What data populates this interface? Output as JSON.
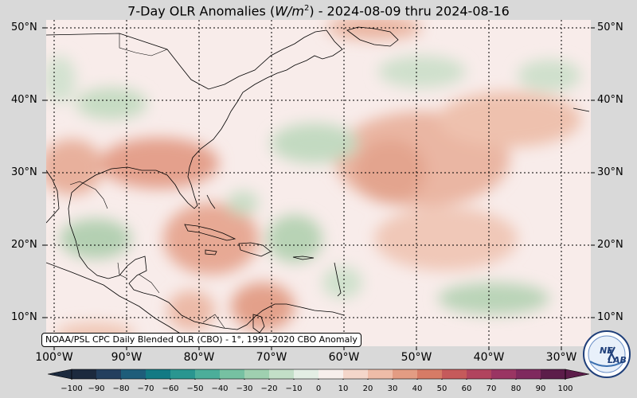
{
  "title_prefix": "7-Day OLR Anomalies (",
  "title_unit_base": "W/m",
  "title_unit_exp": "2",
  "title_suffix": ") - 2024-08-09 thru 2024-08-16",
  "lat_labels": [
    "50°N",
    "40°N",
    "30°N",
    "20°N",
    "10°N"
  ],
  "lon_labels": [
    "100°W",
    "90°W",
    "80°W",
    "70°W",
    "60°W",
    "50°W",
    "40°W",
    "30°W"
  ],
  "source_note": "NOAA/PSL CPC Daily Blended OLR (CBO) - 1°, 1991-2020 CBO Anomaly",
  "colorbar": {
    "ticks": [
      "−100",
      "−90",
      "−80",
      "−70",
      "−60",
      "−50",
      "−40",
      "−30",
      "−20",
      "−10",
      "0",
      "10",
      "20",
      "30",
      "40",
      "50",
      "60",
      "70",
      "80",
      "90",
      "100"
    ],
    "colors": [
      "#1c2a3e",
      "#233f5e",
      "#1e5d7a",
      "#137a84",
      "#2a9690",
      "#4cae9a",
      "#76c1a2",
      "#9fd0b0",
      "#c3dfc8",
      "#e3eee4",
      "#f7efec",
      "#f4d6ca",
      "#eebca8",
      "#e39c83",
      "#d67b66",
      "#c55a5b",
      "#b1445e",
      "#9a3563",
      "#7f2a5e",
      "#5c1d4a"
    ]
  },
  "logo": {
    "text_top": "NE",
    "text_bottom": "LAB"
  }
}
